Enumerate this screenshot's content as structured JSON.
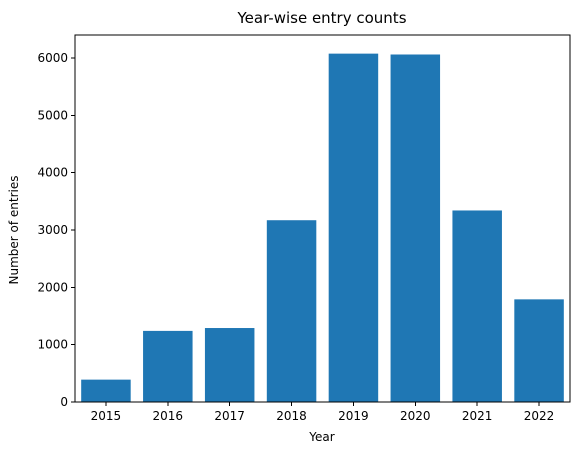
{
  "chart_data": {
    "type": "bar",
    "title": "Year-wise entry counts",
    "xlabel": "Year",
    "ylabel": "Number of entries",
    "categories": [
      "2015",
      "2016",
      "2017",
      "2018",
      "2019",
      "2020",
      "2021",
      "2022"
    ],
    "values": [
      390,
      1240,
      1290,
      3170,
      6075,
      6060,
      3340,
      1790
    ],
    "ylim": [
      0,
      6400
    ],
    "yticks": [
      0,
      1000,
      2000,
      3000,
      4000,
      5000,
      6000
    ],
    "grid": false,
    "bar_color": "#1f77b4"
  }
}
